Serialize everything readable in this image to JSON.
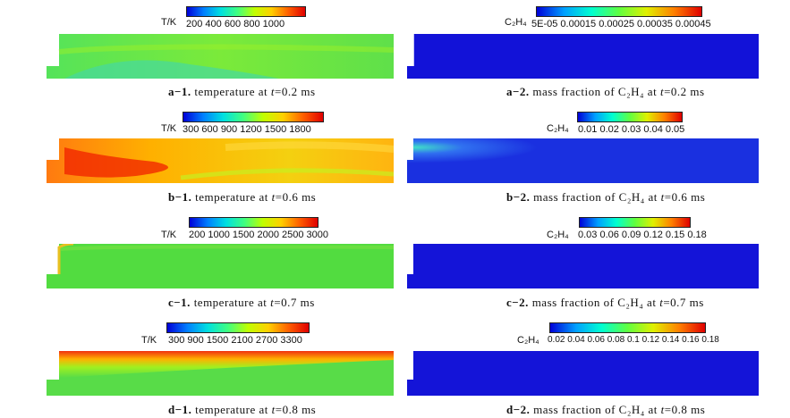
{
  "panels": [
    {
      "id": "a-1",
      "kind": "temperature",
      "cb_label": "T/K",
      "ticks": "200   400   600   800   1000",
      "cap_id": "a−1.",
      "cap_text": "temperature at ",
      "cap_var": "t",
      "cap_val": "=0.2 ms"
    },
    {
      "id": "a-2",
      "kind": "c2h4",
      "cb_label": "C₂H₄",
      "ticks": "5E-05  0.00015 0.00025 0.00035 0.00045",
      "cap_id": "a−2.",
      "cap_text": "mass fraction of C₂H₄ at ",
      "cap_var": "t",
      "cap_val": "=0.2 ms"
    },
    {
      "id": "b-1",
      "kind": "temperature",
      "cb_label": "T/K",
      "ticks": "300   600   900   1200  1500  1800",
      "cap_id": "b−1.",
      "cap_text": "temperature at ",
      "cap_var": "t",
      "cap_val": "=0.6 ms"
    },
    {
      "id": "b-2",
      "kind": "c2h4",
      "cb_label": "C₂H₄",
      "ticks": "0.01  0.02  0.03  0.04  0.05",
      "cap_id": "b−2.",
      "cap_text": "mass fraction of C₂H₄ at ",
      "cap_var": "t",
      "cap_val": "=0.6 ms"
    },
    {
      "id": "c-1",
      "kind": "temperature",
      "cb_label": "T/K",
      "ticks": "200  1000  1500  2000  2500  3000",
      "cap_id": "c−1.",
      "cap_text": "temperature at ",
      "cap_var": "t",
      "cap_val": "=0.7 ms"
    },
    {
      "id": "c-2",
      "kind": "c2h4",
      "cb_label": "C₂H₄",
      "ticks": "0.03 0.06 0.09 0.12 0.15 0.18",
      "cap_id": "c−2.",
      "cap_text": "mass fraction of C₂H₄ at ",
      "cap_var": "t",
      "cap_val": "=0.7 ms"
    },
    {
      "id": "d-1",
      "kind": "temperature",
      "cb_label": "T/K",
      "ticks": "300   900   1500  2100  2700  3300",
      "cap_id": "d−1.",
      "cap_text": "temperature at ",
      "cap_var": "t",
      "cap_val": "=0.8 ms"
    },
    {
      "id": "d-2",
      "kind": "c2h4",
      "cb_label": "C₂H₄",
      "ticks": "0.02 0.04 0.06 0.08 0.1 0.12 0.14 0.16 0.18",
      "cap_id": "d−2.",
      "cap_text": "mass fraction of C₂H₄ at ",
      "cap_var": "t",
      "cap_val": "=0.8 ms"
    }
  ]
}
